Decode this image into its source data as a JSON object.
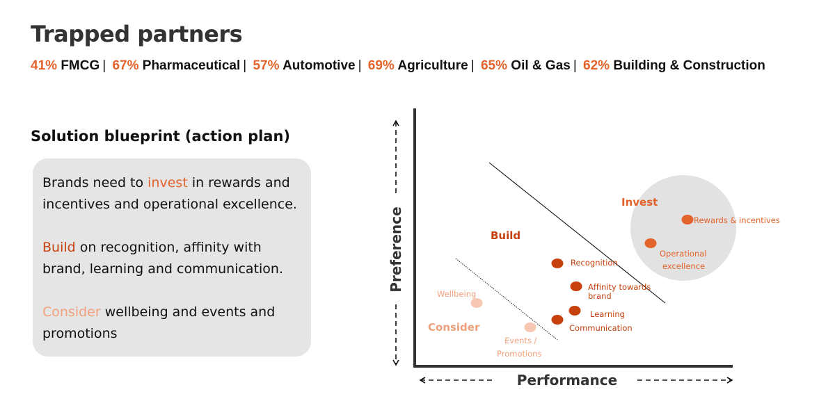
{
  "header": {
    "title": "Trapped partners",
    "stats": [
      {
        "pct": "41%",
        "label": "FMCG"
      },
      {
        "pct": "67%",
        "label": "Pharmaceutical"
      },
      {
        "pct": "57%",
        "label": "Automotive"
      },
      {
        "pct": "69%",
        "label": "Agriculture"
      },
      {
        "pct": "65%",
        "label": "Oil & Gas"
      },
      {
        "pct": "62%",
        "label": "Building & Construction"
      }
    ],
    "separator": "|"
  },
  "blueprint": {
    "title": "Solution blueprint (action plan)",
    "paragraphs": [
      {
        "pre": "Brands need to ",
        "highlight": "invest",
        "post": " in rewards and incentives and operational excellence."
      },
      {
        "pre": "",
        "highlight": "Build",
        "post": " on recognition, affinity with brand, learning and communication."
      },
      {
        "pre": "",
        "highlight": "Consider",
        "post": " wellbeing and events and promotions"
      }
    ]
  },
  "diagram": {
    "y_axis_label": "Preference",
    "x_axis_label": "Performance",
    "zones": {
      "invest": "Invest",
      "build": "Build",
      "consider": "Consider"
    },
    "points": {
      "rewards": "Rewards & incentives",
      "operational_1": "Operational",
      "operational_2": "excellence",
      "recognition": "Recognition",
      "affinity_1": "Affinity towards",
      "affinity_2": "brand",
      "learning": "Learning",
      "communication": "Communication",
      "wellbeing": "Wellbeing",
      "events_1": "Events /",
      "events_2": "Promotions"
    },
    "colors": {
      "invest": "#e2632b",
      "build": "#c6410e",
      "consider": "#f0a07a",
      "consider_dot": "#f6c8b4",
      "circle": "#e2e2e2",
      "axis": "#333333"
    }
  }
}
